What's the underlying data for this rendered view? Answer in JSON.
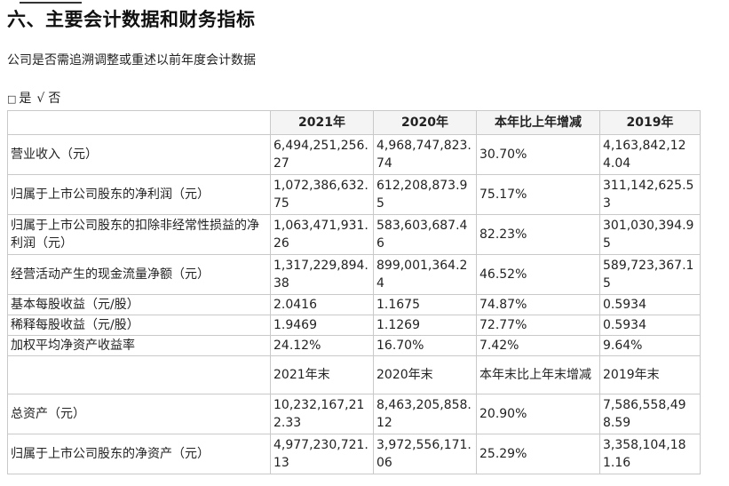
{
  "section": {
    "title": "六、主要会计数据和财务指标"
  },
  "question": "公司是否需追溯调整或重述以前年度会计数据",
  "options": {
    "box": "□",
    "yes": "是",
    "check": "√",
    "no": "否"
  },
  "table": {
    "headers": [
      "",
      "2021年",
      "2020年",
      "本年比上年增减",
      "2019年"
    ],
    "rows_a": [
      {
        "label": "营业收入（元）",
        "v2021": "6,494,251,256.27",
        "v2020": "4,968,747,823.74",
        "change": "30.70%",
        "v2019": "4,163,842,124.04"
      },
      {
        "label": "归属于上市公司股东的净利润（元）",
        "v2021": "1,072,386,632.75",
        "v2020": "612,208,873.95",
        "change": "75.17%",
        "v2019": "311,142,625.53"
      },
      {
        "label": "归属于上市公司股东的扣除非经常性损益的净 利润（元）",
        "v2021": "1,063,471,931.26",
        "v2020": "583,603,687.46",
        "change": "82.23%",
        "v2019": "301,030,394.95"
      },
      {
        "label": "经营活动产生的现金流量净额（元）",
        "v2021": "1,317,229,894.38",
        "v2020": "899,001,364.24",
        "change": "46.52%",
        "v2019": "589,723,367.15"
      },
      {
        "label": "基本每股收益（元/股）",
        "v2021": "2.0416",
        "v2020": "1.1675",
        "change": "74.87%",
        "v2019": "0.5934"
      },
      {
        "label": "稀释每股收益（元/股）",
        "v2021": "1.9469",
        "v2020": "1.1269",
        "change": "72.77%",
        "v2019": "0.5934"
      },
      {
        "label": "加权平均净资产收益率",
        "v2021": "24.12%",
        "v2020": "16.70%",
        "change": "7.42%",
        "v2019": "9.64%"
      }
    ],
    "subheaders": [
      "",
      "2021年末",
      "2020年末",
      "本年末比上年末增减",
      "2019年末"
    ],
    "rows_b": [
      {
        "label": "总资产（元）",
        "v2021": "10,232,167,212.33",
        "v2020": "8,463,205,858.12",
        "change": "20.90%",
        "v2019": "7,586,558,498.59"
      },
      {
        "label": "归属于上市公司股东的净资产（元）",
        "v2021": "4,977,230,721.13",
        "v2020": "3,972,556,171.06",
        "change": "25.29%",
        "v2019": "3,358,104,181.16"
      }
    ]
  }
}
